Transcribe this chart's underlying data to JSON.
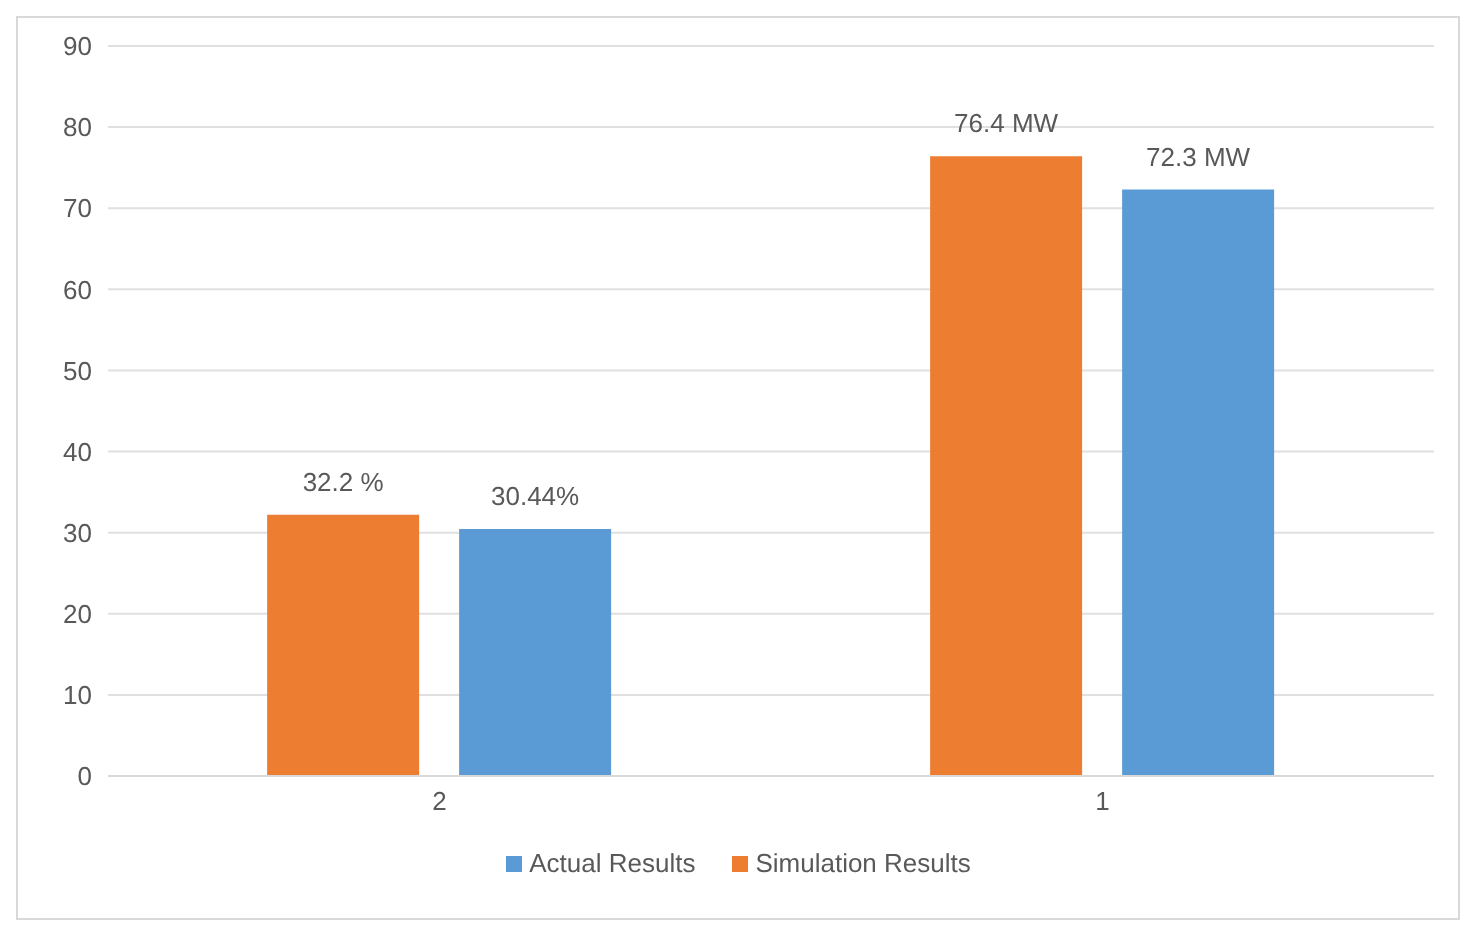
{
  "chart_data": {
    "type": "bar",
    "categories": [
      "2",
      "1"
    ],
    "series": [
      {
        "name": "Simulation Results",
        "color": "#ed7d31",
        "values": [
          32.2,
          76.4
        ],
        "value_labels": [
          "32.2 %",
          "76.4 MW"
        ]
      },
      {
        "name": "Actual Results",
        "color": "#5b9bd5",
        "values": [
          30.44,
          72.3
        ],
        "value_labels": [
          "30.44%",
          "72.3 MW"
        ]
      }
    ],
    "ylim": [
      0,
      90
    ],
    "yticks": [
      0,
      10,
      20,
      30,
      40,
      50,
      60,
      70,
      80,
      90
    ],
    "grid": "y",
    "legend": "bottom"
  }
}
